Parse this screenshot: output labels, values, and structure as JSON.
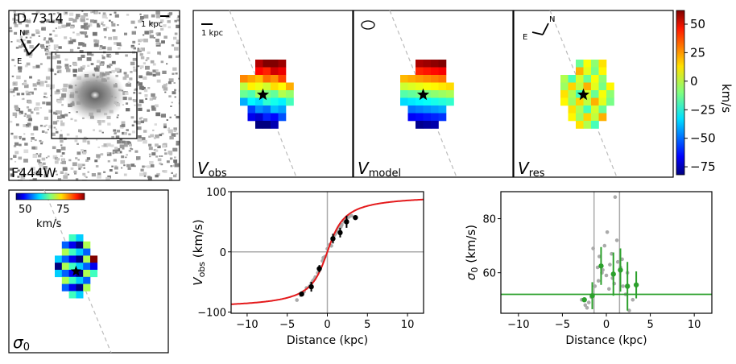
{
  "image_panel": {
    "id_label": "ID 7314",
    "band_label": "F444W",
    "scale_label": "1 kpc",
    "compass_n": "N",
    "compass_e": "E"
  },
  "maps": [
    {
      "key": "obs",
      "label_main": "V",
      "label_sub": "obs",
      "scale_label": "1 kpc"
    },
    {
      "key": "model",
      "label_main": "V",
      "label_sub": "model"
    },
    {
      "key": "res",
      "label_main": "V",
      "label_sub": "res",
      "compass_n": "N",
      "compass_e": "E"
    }
  ],
  "colorbar": {
    "label": "km/s",
    "ticks": [
      50,
      25,
      0,
      -25,
      -50,
      -75
    ],
    "range": [
      -82,
      62
    ]
  },
  "sigma_map": {
    "label_main": "σ",
    "label_sub": "0",
    "cbar_ticks": [
      50,
      75
    ],
    "cbar_label": "km/s"
  },
  "chart_data": [
    {
      "type": "scatter",
      "title": "",
      "xlabel": "Distance (kpc)",
      "ylabel_main": "V",
      "ylabel_sub": "obs",
      "ylabel_unit": "(km/s)",
      "xlim": [
        -12,
        12
      ],
      "ylim": [
        -102,
        100
      ],
      "xticks": [
        -10,
        -5,
        0,
        5,
        10
      ],
      "yticks": [
        -100,
        0,
        100
      ],
      "model_curve": {
        "name": "arctan model",
        "color": "#e41a1c",
        "vmax": 95,
        "rt": 1.6
      },
      "gray_points": {
        "x": [
          -3.8,
          -3.3,
          -2.9,
          -2.6,
          -2.2,
          -1.8,
          -1.5,
          -1.2,
          -0.9,
          -0.6,
          -0.3,
          0.0,
          0.3,
          0.6,
          0.9,
          1.2,
          1.5,
          1.8,
          2.1,
          2.4,
          2.7,
          3.0,
          -2.0,
          -1.0,
          1.0,
          2.0,
          -0.5,
          0.5,
          1.7,
          -1.6
        ],
        "y": [
          -80,
          -72,
          -66,
          -60,
          -57,
          -48,
          -42,
          -35,
          -25,
          -15,
          -8,
          5,
          12,
          20,
          28,
          35,
          40,
          45,
          50,
          55,
          58,
          60,
          -52,
          -30,
          30,
          52,
          -10,
          10,
          42,
          -45
        ]
      },
      "binned": {
        "x": [
          -3.2,
          -2.0,
          -1.0,
          0.7,
          1.6,
          2.4,
          3.5
        ],
        "y": [
          -70,
          -58,
          -28,
          22,
          32,
          50,
          57
        ],
        "yerr": [
          3,
          8,
          6,
          8,
          8,
          10,
          3
        ]
      }
    },
    {
      "type": "scatter",
      "title": "",
      "xlabel": "Distance (kpc)",
      "ylabel_main": "σ",
      "ylabel_sub": "0",
      "ylabel_unit": "(km/s)",
      "xlim": [
        -12,
        12
      ],
      "ylim": [
        45,
        90
      ],
      "xticks": [
        -10,
        -5,
        0,
        5,
        10
      ],
      "yticks": [
        60,
        80
      ],
      "sigma0_line": {
        "value": 52,
        "color": "#2ca02c"
      },
      "vlines": [
        -1.4,
        1.5
      ],
      "gray_points": {
        "x": [
          -2.8,
          -2.4,
          -2.0,
          -1.7,
          -1.3,
          -1.0,
          -0.8,
          -0.5,
          -0.2,
          0.1,
          0.4,
          0.7,
          1.0,
          1.3,
          1.6,
          1.9,
          2.2,
          2.6,
          3.0,
          -1.5,
          0.0,
          0.6,
          1.2,
          -0.9,
          0.3,
          2.4,
          -2.2,
          1.8,
          -0.4,
          0.9
        ],
        "y": [
          50,
          48,
          49,
          51,
          55,
          62,
          66,
          60,
          70,
          75,
          63,
          58,
          88,
          64,
          62,
          55,
          52,
          46,
          50,
          69,
          59,
          67,
          72,
          57,
          54,
          60,
          47,
          65,
          61,
          56
        ]
      },
      "binned": {
        "x": [
          -2.5,
          -1.6,
          -0.6,
          0.8,
          1.6,
          2.4,
          3.4
        ],
        "y": [
          50,
          51.5,
          62.5,
          59.5,
          61,
          55,
          55.5
        ],
        "yerr": [
          0.5,
          5,
          7,
          8,
          8,
          9,
          5
        ]
      }
    }
  ]
}
